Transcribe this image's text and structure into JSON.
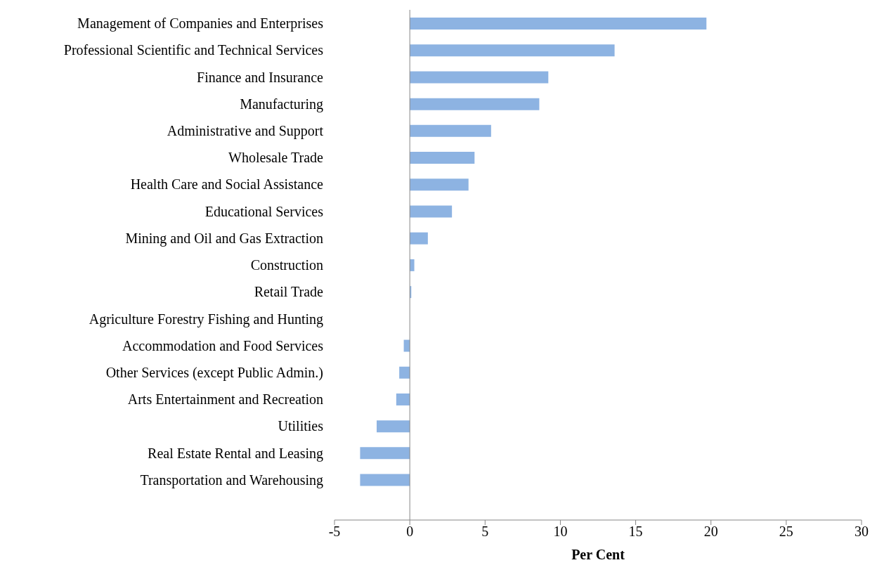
{
  "chart_data": {
    "type": "bar",
    "orientation": "horizontal",
    "xlabel": "Per Cent",
    "categories": [
      "Management of Companies and Enterprises",
      "Professional Scientific and Technical Services",
      "Finance and Insurance",
      "Manufacturing",
      "Administrative and Support",
      "Wholesale Trade",
      "Health Care and Social Assistance",
      "Educational Services",
      "Mining and Oil and Gas Extraction",
      "Construction",
      "Retail Trade",
      "Agriculture Forestry Fishing and Hunting",
      "Accommodation and Food Services",
      "Other Services (except Public Admin.)",
      "Arts Entertainment and Recreation",
      "Utilities",
      "Real Estate Rental and Leasing",
      "Transportation and Warehousing",
      null
    ],
    "values": [
      19.7,
      13.6,
      9.2,
      8.6,
      5.4,
      4.3,
      3.9,
      2.8,
      1.2,
      0.3,
      0.1,
      0,
      -0.4,
      -0.7,
      -0.9,
      -2.2,
      -3.3,
      -3.3,
      null
    ],
    "color": "#8db3e2",
    "xlim": [
      -5,
      30
    ],
    "xticks": [
      -5,
      0,
      5,
      10,
      15,
      20,
      25,
      30
    ],
    "legend": false
  }
}
